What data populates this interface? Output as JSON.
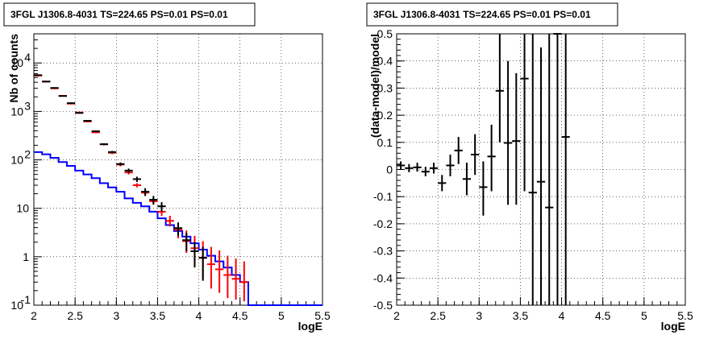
{
  "chart_data": [
    {
      "type": "histogram-errorbar",
      "title": "3FGL J1306.8-4031 TS=224.65 PS=0.01 PS=0.01",
      "xlabel": "logE",
      "ylabel": "Nb of counts",
      "xlim": [
        2,
        5.5
      ],
      "ylim": [
        0.1,
        40000
      ],
      "yscale": "log",
      "grid": true,
      "x_ticks": [
        "2",
        "2.5",
        "3",
        "3.5",
        "4",
        "4.5",
        "5",
        "5.5"
      ],
      "y_ticks": [
        {
          "v": 0.1,
          "label": "10",
          "exp": "-1"
        },
        {
          "v": 1,
          "label": "1",
          "exp": ""
        },
        {
          "v": 10,
          "label": "10",
          "exp": ""
        },
        {
          "v": 100,
          "label": "10",
          "exp": "2"
        },
        {
          "v": 1000,
          "label": "10",
          "exp": "3"
        },
        {
          "v": 10000,
          "label": "10",
          "exp": "4"
        }
      ],
      "bin_width": 0.1,
      "series": [
        {
          "color": "#0000ff",
          "style": "step",
          "edges": [
            2.0,
            2.1,
            2.2,
            2.3,
            2.4,
            2.5,
            2.6,
            2.7,
            2.8,
            2.9,
            3.0,
            3.1,
            3.2,
            3.3,
            3.4,
            3.5,
            3.6,
            3.7,
            3.8,
            3.9,
            4.0,
            4.1,
            4.2,
            4.3,
            4.4,
            4.5,
            4.6,
            4.7,
            4.8,
            4.9,
            5.0,
            5.1,
            5.2,
            5.3,
            5.4,
            5.5
          ],
          "values": [
            145,
            130,
            110,
            90,
            75,
            60,
            50,
            42,
            33,
            27,
            22,
            16,
            13,
            11,
            8.5,
            6.2,
            4.5,
            3.4,
            2.6,
            1.9,
            1.4,
            1.05,
            0.8,
            0.6,
            0.42,
            0.3,
            0.1,
            0.1,
            0.1,
            0.1,
            0.1,
            0.1,
            0.1,
            0.1,
            0.1
          ]
        },
        {
          "color": "#ff0000",
          "style": "errorbar",
          "x": [
            2.05,
            2.15,
            2.25,
            2.35,
            2.45,
            2.55,
            2.65,
            2.75,
            2.85,
            2.95,
            3.05,
            3.15,
            3.25,
            3.35,
            3.45,
            3.55,
            3.65,
            3.75,
            3.85,
            3.95,
            4.05,
            4.15,
            4.25,
            4.35,
            4.45,
            4.55
          ],
          "y": [
            5500,
            4100,
            3000,
            2100,
            1450,
            950,
            620,
            370,
            210,
            140,
            80,
            55,
            30,
            21,
            14,
            8.5,
            5.5,
            3.6,
            2.1,
            1.5,
            0.95,
            0.7,
            0.55,
            0.42,
            0.35,
            0.3
          ],
          "ylo": [
            5300,
            4000,
            2900,
            2050,
            1400,
            920,
            600,
            355,
            200,
            132,
            74,
            50,
            27,
            18,
            12,
            7,
            4.2,
            2.4,
            1.2,
            0.7,
            0.35,
            0.22,
            0.18,
            0.14,
            0.13,
            0.12
          ],
          "yhi": [
            5700,
            4200,
            3100,
            2150,
            1500,
            980,
            640,
            385,
            220,
            148,
            86,
            60,
            33,
            24,
            16,
            10,
            7,
            5,
            3.5,
            2.7,
            2.1,
            1.6,
            1.35,
            1.05,
            0.92,
            0.8
          ]
        },
        {
          "color": "#000000",
          "style": "errorbar",
          "x": [
            2.05,
            2.15,
            2.25,
            2.35,
            2.45,
            2.55,
            2.65,
            2.75,
            2.85,
            2.95,
            3.05,
            3.15,
            3.25,
            3.35,
            3.45,
            3.55,
            3.75,
            3.85,
            3.95,
            4.05
          ],
          "y": [
            5600,
            4150,
            3050,
            2080,
            1480,
            930,
            640,
            390,
            210,
            145,
            82,
            60,
            40,
            22,
            15,
            11,
            3.9,
            2.2,
            1.3,
            0.95
          ],
          "ylo": [
            5400,
            4050,
            2950,
            2030,
            1430,
            900,
            620,
            375,
            200,
            137,
            76,
            54,
            35,
            18,
            12,
            8.6,
            2.7,
            1.3,
            0.6,
            0.32
          ],
          "yhi": [
            5800,
            4250,
            3150,
            2130,
            1530,
            960,
            660,
            405,
            220,
            153,
            88,
            66,
            45,
            26,
            18,
            13.4,
            5.1,
            3.1,
            2.0,
            1.6
          ]
        }
      ]
    },
    {
      "type": "scatter-errorbar",
      "title": "3FGL J1306.8-4031 TS=224.65 PS=0.01 PS=0.01",
      "xlabel": "logE",
      "ylabel": "(data-model)/model",
      "xlim": [
        2,
        5.5
      ],
      "ylim": [
        -0.5,
        0.5
      ],
      "grid": true,
      "x_ticks": [
        "2",
        "2.5",
        "3",
        "3.5",
        "4",
        "4.5",
        "5",
        "5.5"
      ],
      "y_ticks": [
        "-0.5",
        "-0.4",
        "-0.3",
        "-0.2",
        "-0.1",
        "0",
        "0.1",
        "0.2",
        "0.3",
        "0.4",
        "0.5"
      ],
      "series": [
        {
          "color": "#000000",
          "x": [
            2.05,
            2.15,
            2.25,
            2.35,
            2.45,
            2.55,
            2.65,
            2.75,
            2.85,
            2.95,
            3.05,
            3.15,
            3.25,
            3.35,
            3.45,
            3.55,
            3.65,
            3.75,
            3.85,
            3.95,
            4.05
          ],
          "y": [
            0.015,
            0.005,
            0.008,
            -0.008,
            0.005,
            -0.05,
            0.015,
            0.07,
            -0.035,
            0.055,
            -0.065,
            0.048,
            0.29,
            0.098,
            0.105,
            0.335,
            -0.085,
            -0.045,
            -0.14,
            0.5,
            0.12
          ],
          "ylo": [
            0.0,
            -0.01,
            -0.008,
            -0.025,
            -0.015,
            -0.08,
            -0.025,
            0.02,
            -0.095,
            -0.02,
            -0.17,
            -0.08,
            0.1,
            -0.13,
            -0.13,
            -0.08,
            -0.5,
            -0.5,
            -0.5,
            -0.5,
            -0.5
          ],
          "yhi": [
            0.03,
            0.02,
            0.025,
            0.01,
            0.025,
            -0.02,
            0.055,
            0.12,
            0.025,
            0.13,
            0.03,
            0.165,
            0.5,
            0.4,
            0.355,
            0.5,
            0.5,
            0.45,
            0.5,
            0.5,
            0.5
          ]
        }
      ]
    }
  ]
}
